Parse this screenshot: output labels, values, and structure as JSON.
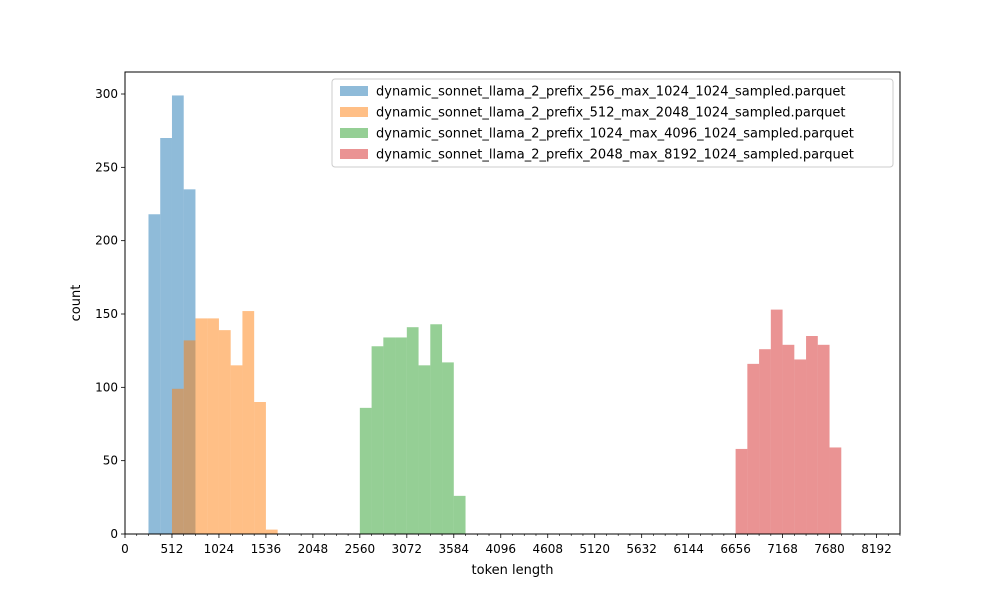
{
  "chart_data": {
    "type": "bar",
    "title": "",
    "xlabel": "token length",
    "ylabel": "count",
    "xlim": [
      0,
      8448
    ],
    "ylim": [
      0,
      315
    ],
    "xticks": [
      0,
      512,
      1024,
      1536,
      2048,
      2560,
      3072,
      3584,
      4096,
      4608,
      5120,
      5632,
      6144,
      6656,
      7168,
      7680,
      8192
    ],
    "yticks": [
      0,
      50,
      100,
      150,
      200,
      250,
      300
    ],
    "grid": false,
    "legend_position": "top-right",
    "bin_width": 128,
    "series": [
      {
        "name": "dynamic_sonnet_llama_2_prefix_256_max_1024_1024_sampled.parquet",
        "color": "#1f77b4",
        "alpha": 0.5,
        "bins": [
          [
            256,
            218
          ],
          [
            384,
            270
          ],
          [
            512,
            299
          ],
          [
            640,
            235
          ]
        ]
      },
      {
        "name": "dynamic_sonnet_llama_2_prefix_512_max_2048_1024_sampled.parquet",
        "color": "#ff7f0e",
        "alpha": 0.5,
        "bins": [
          [
            512,
            99
          ],
          [
            640,
            132
          ],
          [
            768,
            147
          ],
          [
            896,
            147
          ],
          [
            1024,
            139
          ],
          [
            1152,
            115
          ],
          [
            1280,
            152
          ],
          [
            1408,
            90
          ],
          [
            1536,
            3
          ]
        ]
      },
      {
        "name": "dynamic_sonnet_llama_2_prefix_1024_max_4096_1024_sampled.parquet",
        "color": "#2ca02c",
        "alpha": 0.5,
        "bins": [
          [
            2560,
            86
          ],
          [
            2688,
            128
          ],
          [
            2816,
            134
          ],
          [
            2944,
            134
          ],
          [
            3072,
            141
          ],
          [
            3200,
            115
          ],
          [
            3328,
            143
          ],
          [
            3456,
            117
          ],
          [
            3584,
            26
          ]
        ]
      },
      {
        "name": "dynamic_sonnet_llama_2_prefix_2048_max_8192_1024_sampled.parquet",
        "color": "#d62728",
        "alpha": 0.5,
        "bins": [
          [
            6656,
            58
          ],
          [
            6784,
            116
          ],
          [
            6912,
            126
          ],
          [
            7040,
            153
          ],
          [
            7168,
            129
          ],
          [
            7296,
            119
          ],
          [
            7424,
            135
          ],
          [
            7552,
            129
          ],
          [
            7680,
            59
          ]
        ]
      }
    ]
  }
}
